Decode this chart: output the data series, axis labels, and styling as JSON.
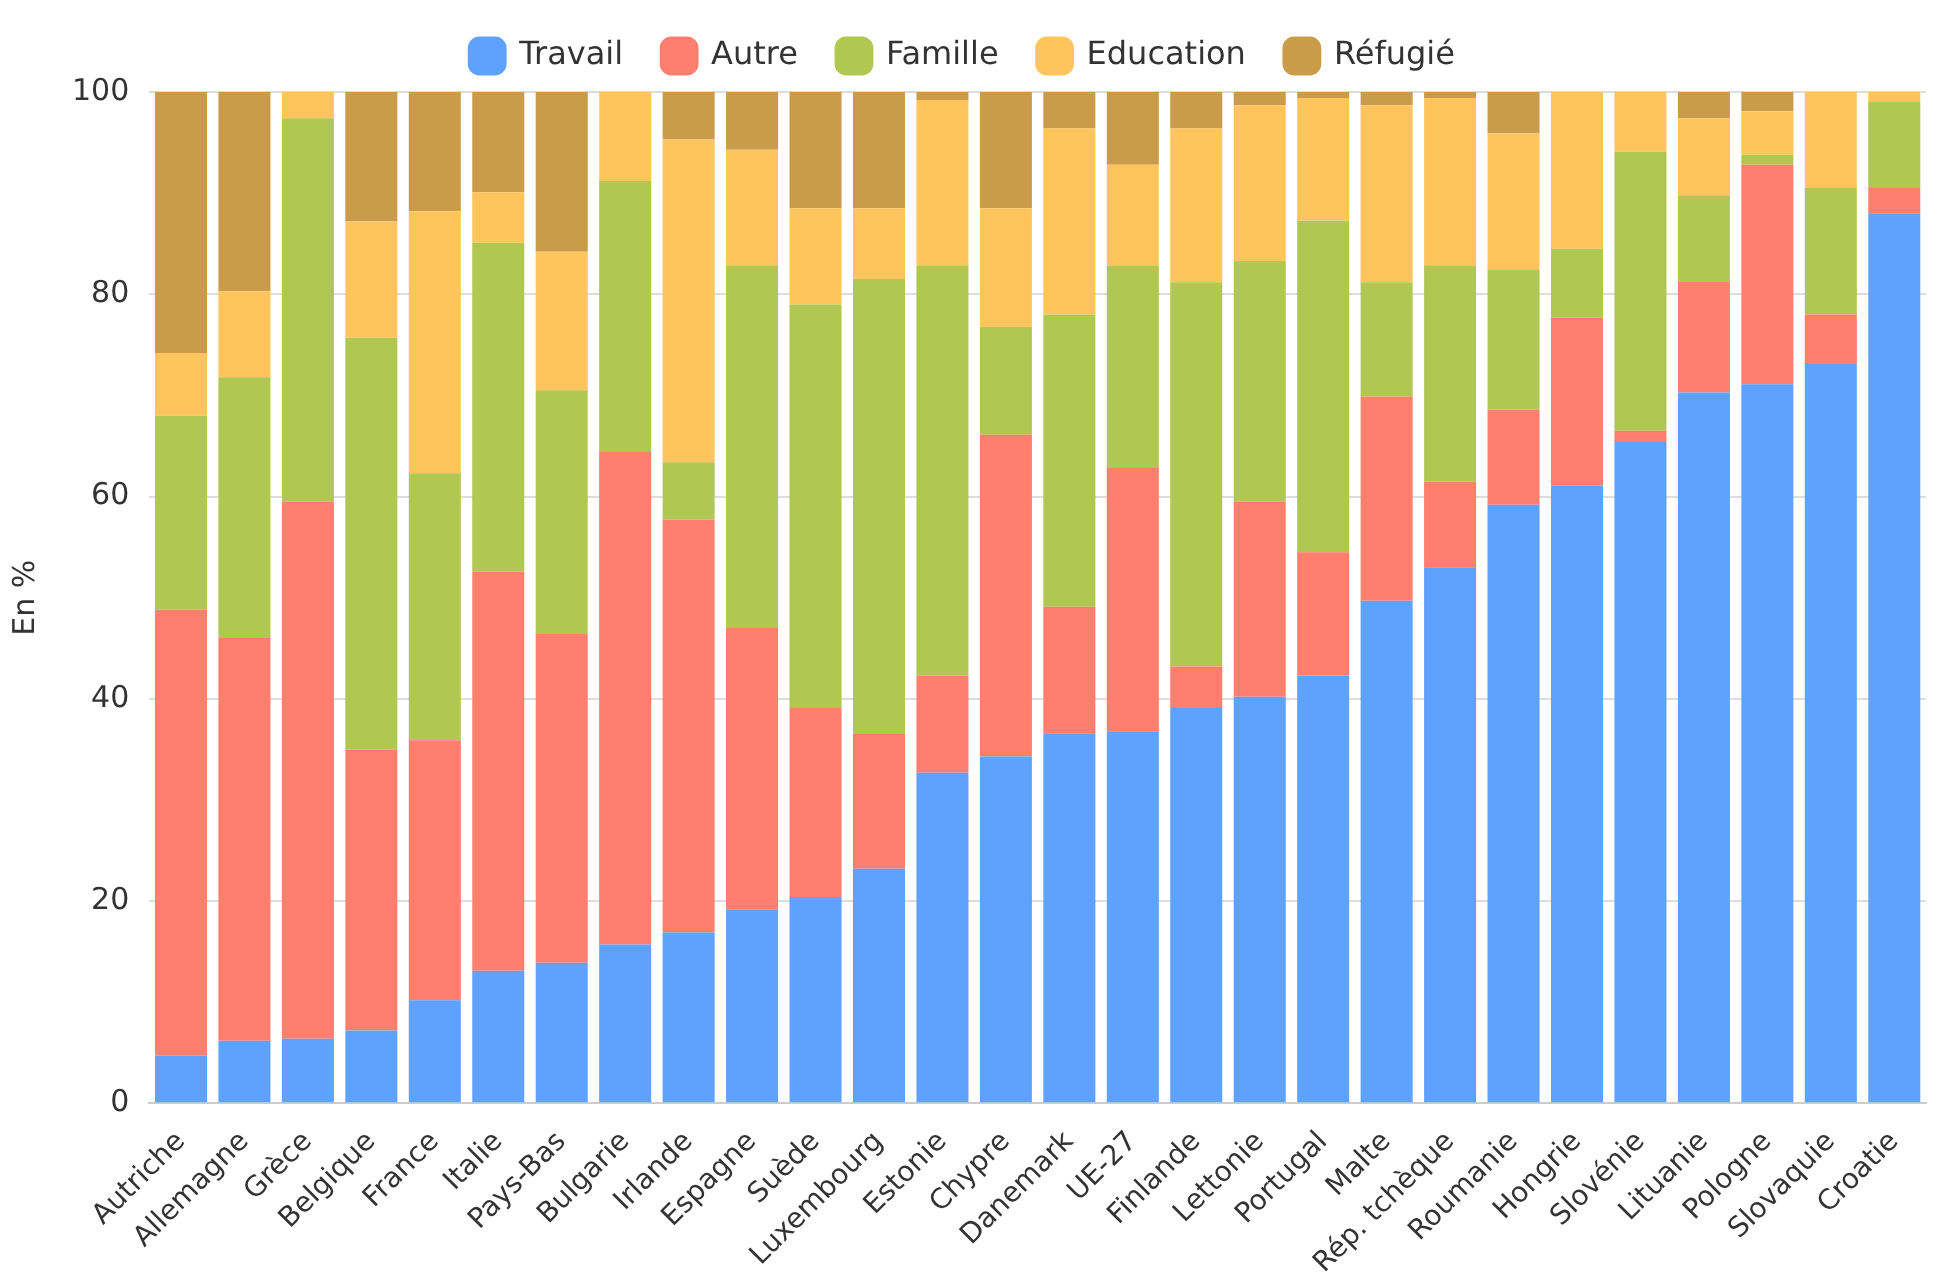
{
  "chart_data": {
    "type": "bar",
    "stacked": true,
    "ylabel": "En %",
    "categories": [
      "Autriche",
      "Allemagne",
      "Grèce",
      "Belgique",
      "France",
      "Italie",
      "Pays-Bas",
      "Bulgarie",
      "Irlande",
      "Espagne",
      "Suède",
      "Luxembourg",
      "Estonie",
      "Chypre",
      "Danemark",
      "UE-27",
      "Finlande",
      "Lettonie",
      "Portugal",
      "Malte",
      "Rép. tchèque",
      "Roumanie",
      "Hongrie",
      "Slovénie",
      "Lituanie",
      "Pologne",
      "Slovaquie",
      "Croatie"
    ],
    "series": [
      {
        "name": "Travail",
        "color": "#5fa2fd",
        "values": [
          4.7,
          6.2,
          6.4,
          7.2,
          10.2,
          13.1,
          13.9,
          15.7,
          16.9,
          19.2,
          20.4,
          23.2,
          32.7,
          34.3,
          36.6,
          36.8,
          39.1,
          40.2,
          42.3,
          49.7,
          53.0,
          59.2,
          61.1,
          65.4,
          70.3,
          71.1,
          73.1,
          88.0
        ]
      },
      {
        "name": "Autre",
        "color": "#ff7f6f",
        "values": [
          44.1,
          39.9,
          53.1,
          27.8,
          25.7,
          39.5,
          32.5,
          48.7,
          40.8,
          27.8,
          18.7,
          13.4,
          9.6,
          31.8,
          12.5,
          26.1,
          4.1,
          19.3,
          12.2,
          20.2,
          8.5,
          9.4,
          16.6,
          1.1,
          11.0,
          21.7,
          4.9,
          2.5
        ]
      },
      {
        "name": "Famille",
        "color": "#b0c752",
        "values": [
          19.2,
          25.7,
          37.9,
          40.7,
          26.4,
          32.5,
          24.1,
          26.8,
          5.7,
          35.8,
          39.9,
          44.9,
          40.5,
          10.7,
          28.9,
          19.9,
          38.0,
          23.8,
          32.8,
          11.3,
          21.3,
          13.8,
          6.8,
          27.6,
          8.5,
          1.0,
          12.5,
          8.5
        ]
      },
      {
        "name": "Education",
        "color": "#ffc55c",
        "values": [
          6.2,
          8.5,
          2.6,
          11.5,
          25.9,
          5.0,
          13.7,
          8.8,
          31.9,
          11.5,
          9.5,
          7.0,
          16.4,
          11.7,
          18.4,
          10.0,
          15.2,
          15.4,
          12.1,
          17.5,
          16.6,
          13.5,
          15.5,
          5.9,
          7.6,
          4.3,
          9.5,
          1.0
        ]
      },
      {
        "name": "Réfugié",
        "color": "#c99b4a",
        "values": [
          25.8,
          19.7,
          0,
          12.8,
          11.8,
          9.9,
          15.8,
          0,
          4.7,
          5.7,
          11.5,
          11.5,
          0.8,
          11.5,
          3.6,
          7.2,
          3.6,
          1.3,
          0.6,
          1.3,
          0.6,
          4.1,
          0,
          0,
          2.6,
          1.9,
          0,
          0
        ]
      }
    ],
    "ylim": [
      0,
      100
    ],
    "yticks": [
      0,
      20,
      40,
      60,
      80,
      100
    ],
    "grid": "y",
    "legend": "top"
  }
}
